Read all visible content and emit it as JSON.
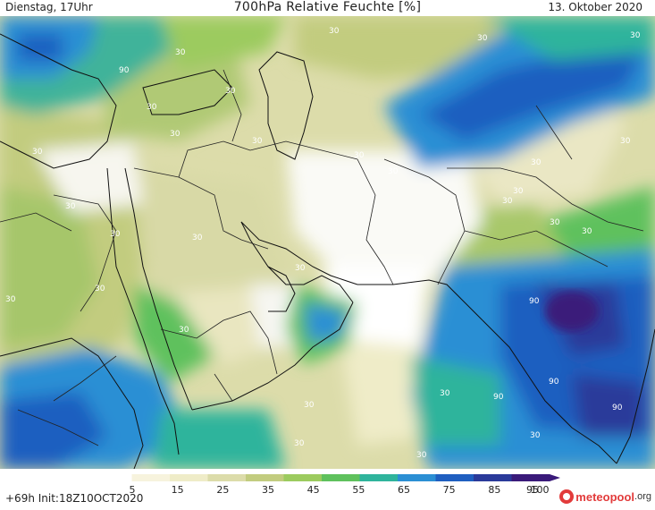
{
  "header": {
    "left": "Dienstag, 17Uhr",
    "title": "700hPa Relative Feuchte [%]",
    "right": "13. Oktober 2020"
  },
  "footer": {
    "run": "+69h Init:18Z10OCT2020"
  },
  "logo": {
    "word1": "meteopool",
    "word2": ".org",
    "icon": "meteopool-logo-icon"
  },
  "legend": {
    "ticks": [
      "5",
      "15",
      "25",
      "35",
      "45",
      "55",
      "65",
      "75",
      "85",
      "95",
      "100"
    ],
    "colors": [
      "#ffffff",
      "#f7f3dd",
      "#efecc8",
      "#dcdcaa",
      "#c2cc7f",
      "#9ccb5f",
      "#5fc15d",
      "#2fb49c",
      "#2b8fd4",
      "#1f5fc0",
      "#2a3a9a",
      "#3a1a7a"
    ]
  },
  "contour_labels": [
    {
      "text": "30"
    },
    {
      "text": "90"
    },
    {
      "text": "30"
    },
    {
      "text": "30"
    },
    {
      "text": "30"
    },
    {
      "text": "30"
    },
    {
      "text": "30"
    },
    {
      "text": "30"
    },
    {
      "text": "30"
    },
    {
      "text": "30"
    },
    {
      "text": "30"
    },
    {
      "text": "30"
    },
    {
      "text": "30"
    },
    {
      "text": "30"
    },
    {
      "text": "30"
    },
    {
      "text": "30"
    },
    {
      "text": "30"
    },
    {
      "text": "30"
    },
    {
      "text": "30"
    },
    {
      "text": "30"
    },
    {
      "text": "30"
    },
    {
      "text": "30"
    },
    {
      "text": "90"
    },
    {
      "text": "90"
    },
    {
      "text": "90"
    },
    {
      "text": "90"
    },
    {
      "text": "30"
    },
    {
      "text": "30"
    },
    {
      "text": "30"
    },
    {
      "text": "30"
    },
    {
      "text": "30"
    },
    {
      "text": "30"
    },
    {
      "text": "30"
    },
    {
      "text": "30"
    }
  ]
}
